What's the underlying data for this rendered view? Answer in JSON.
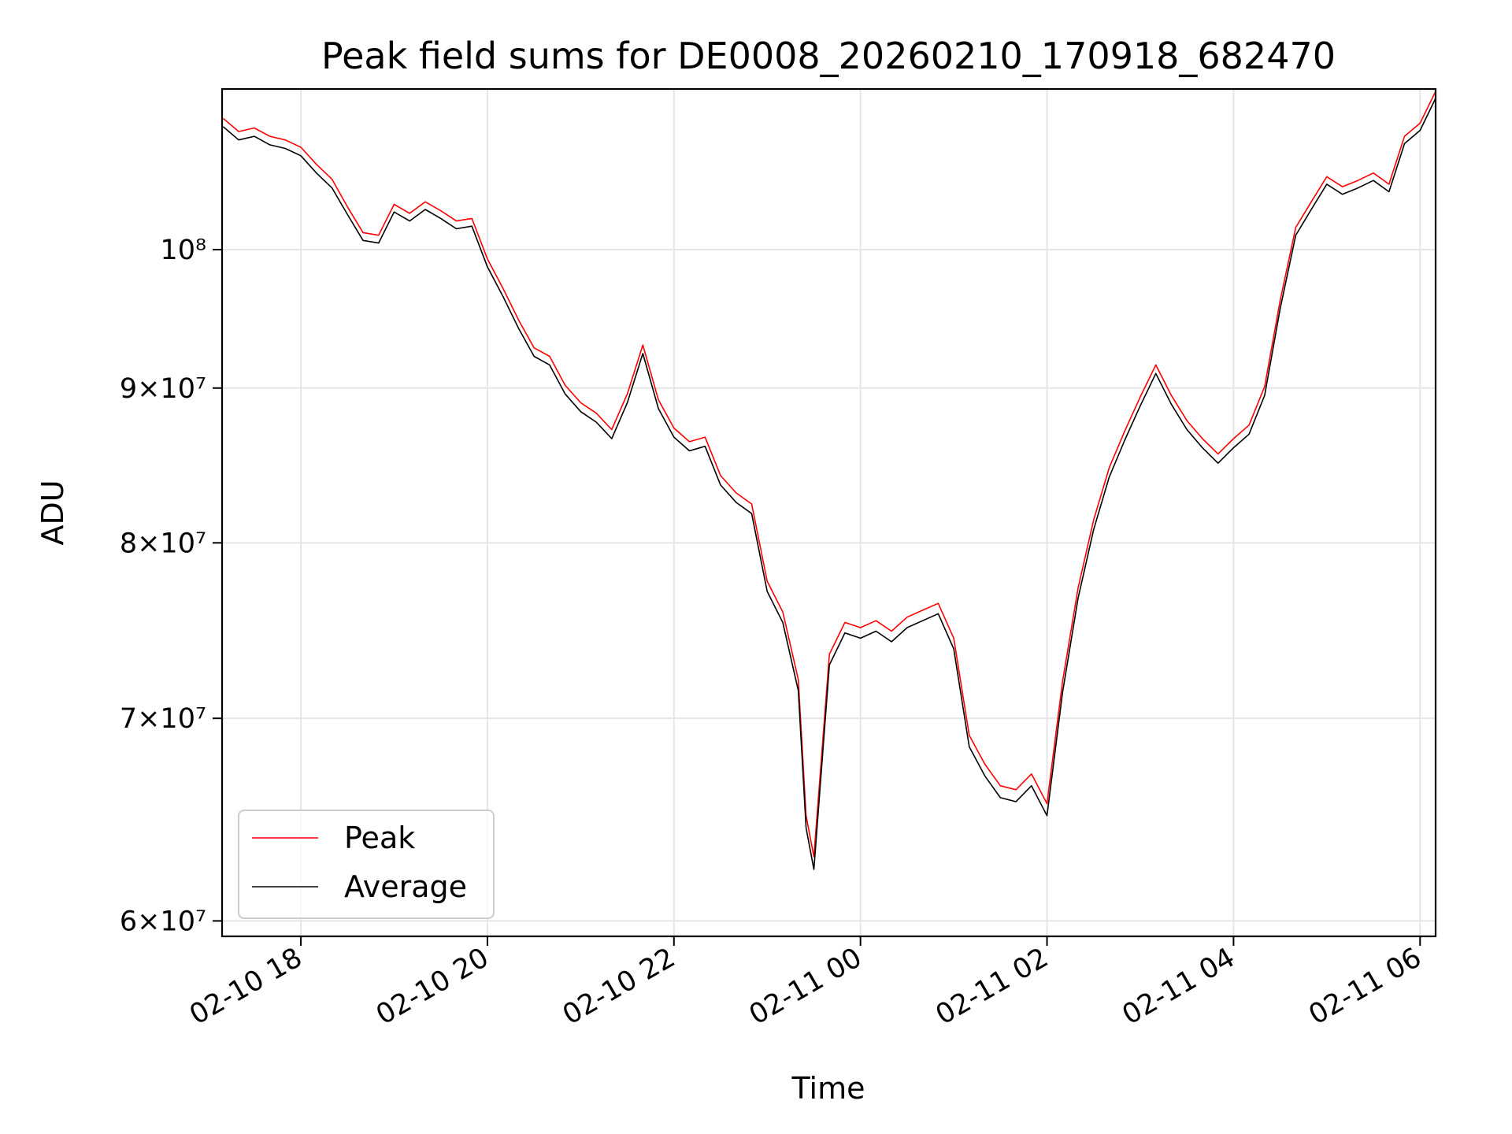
{
  "chart_data": {
    "type": "line",
    "title": "Peak field sums for DE0008_20260210_170918_682470",
    "xlabel": "Time",
    "ylabel": "ADU",
    "y_scale": "log",
    "ylim": [
      59300000,
      113000000
    ],
    "xlim": [
      "2026-02-10 17:09:18",
      "2026-02-11 06:10:00"
    ],
    "x_ticks": [
      "02-10 18",
      "02-10 20",
      "02-10 22",
      "02-11 00",
      "02-11 02",
      "02-11 04",
      "02-11 06"
    ],
    "y_ticks": [
      {
        "value": 60000000,
        "label": "6×10⁷"
      },
      {
        "value": 70000000,
        "label": "7×10⁷"
      },
      {
        "value": 80000000,
        "label": "8×10⁷"
      },
      {
        "value": 90000000,
        "label": "9×10⁷"
      },
      {
        "value": 100000000,
        "label": "10⁸"
      }
    ],
    "grid": true,
    "legend": "lower-left",
    "series": [
      {
        "name": "Peak",
        "color": "#ff0000",
        "points": [
          [
            "2026-02-10 17:10",
            110500000
          ],
          [
            "2026-02-10 17:20",
            109400000
          ],
          [
            "2026-02-10 17:30",
            109700000
          ],
          [
            "2026-02-10 17:40",
            109000000
          ],
          [
            "2026-02-10 17:50",
            108700000
          ],
          [
            "2026-02-10 18:00",
            108100000
          ],
          [
            "2026-02-10 18:10",
            106700000
          ],
          [
            "2026-02-10 18:20",
            105500000
          ],
          [
            "2026-02-10 18:30",
            103300000
          ],
          [
            "2026-02-10 18:40",
            101300000
          ],
          [
            "2026-02-10 18:50",
            101100000
          ],
          [
            "2026-02-10 19:00",
            103500000
          ],
          [
            "2026-02-10 19:10",
            102800000
          ],
          [
            "2026-02-10 19:20",
            103700000
          ],
          [
            "2026-02-10 19:30",
            103000000
          ],
          [
            "2026-02-10 19:40",
            102200000
          ],
          [
            "2026-02-10 19:50",
            102400000
          ],
          [
            "2026-02-10 20:00",
            99300000
          ],
          [
            "2026-02-10 20:10",
            97100000
          ],
          [
            "2026-02-10 20:20",
            94800000
          ],
          [
            "2026-02-10 20:30",
            92800000
          ],
          [
            "2026-02-10 20:40",
            92200000
          ],
          [
            "2026-02-10 20:50",
            90200000
          ],
          [
            "2026-02-10 21:00",
            89000000
          ],
          [
            "2026-02-10 21:10",
            88300000
          ],
          [
            "2026-02-10 21:20",
            87200000
          ],
          [
            "2026-02-10 21:30",
            89600000
          ],
          [
            "2026-02-10 21:40",
            93000000
          ],
          [
            "2026-02-10 21:50",
            89200000
          ],
          [
            "2026-02-10 22:00",
            87300000
          ],
          [
            "2026-02-10 22:10",
            86400000
          ],
          [
            "2026-02-10 22:20",
            86700000
          ],
          [
            "2026-02-10 22:30",
            84200000
          ],
          [
            "2026-02-10 22:40",
            83100000
          ],
          [
            "2026-02-10 22:50",
            82400000
          ],
          [
            "2026-02-10 23:00",
            77700000
          ],
          [
            "2026-02-10 23:10",
            75900000
          ],
          [
            "2026-02-10 23:20",
            72100000
          ],
          [
            "2026-02-10 23:25",
            65000000
          ],
          [
            "2026-02-10 23:30",
            63000000
          ],
          [
            "2026-02-10 23:40",
            73500000
          ],
          [
            "2026-02-10 23:50",
            75300000
          ],
          [
            "2026-02-11 00:00",
            75000000
          ],
          [
            "2026-02-11 00:10",
            75400000
          ],
          [
            "2026-02-11 00:20",
            74800000
          ],
          [
            "2026-02-11 00:30",
            75600000
          ],
          [
            "2026-02-11 00:40",
            76000000
          ],
          [
            "2026-02-11 00:50",
            76400000
          ],
          [
            "2026-02-11 01:00",
            74400000
          ],
          [
            "2026-02-11 01:10",
            69100000
          ],
          [
            "2026-02-11 01:20",
            67600000
          ],
          [
            "2026-02-11 01:30",
            66500000
          ],
          [
            "2026-02-11 01:40",
            66300000
          ],
          [
            "2026-02-11 01:50",
            67100000
          ],
          [
            "2026-02-11 02:00",
            65600000
          ],
          [
            "2026-02-11 02:10",
            72000000
          ],
          [
            "2026-02-11 02:20",
            77300000
          ],
          [
            "2026-02-11 02:30",
            81400000
          ],
          [
            "2026-02-11 02:40",
            84700000
          ],
          [
            "2026-02-11 02:50",
            87100000
          ],
          [
            "2026-02-11 03:00",
            89400000
          ],
          [
            "2026-02-11 03:10",
            91600000
          ],
          [
            "2026-02-11 03:20",
            89500000
          ],
          [
            "2026-02-11 03:30",
            87800000
          ],
          [
            "2026-02-11 03:40",
            86600000
          ],
          [
            "2026-02-11 03:50",
            85600000
          ],
          [
            "2026-02-11 04:00",
            86600000
          ],
          [
            "2026-02-11 04:10",
            87500000
          ],
          [
            "2026-02-11 04:20",
            90100000
          ],
          [
            "2026-02-11 04:30",
            96200000
          ],
          [
            "2026-02-11 04:40",
            101700000
          ],
          [
            "2026-02-11 04:50",
            103700000
          ],
          [
            "2026-02-11 05:00",
            105700000
          ],
          [
            "2026-02-11 05:10",
            104900000
          ],
          [
            "2026-02-11 05:20",
            105400000
          ],
          [
            "2026-02-11 05:30",
            106000000
          ],
          [
            "2026-02-11 05:40",
            105100000
          ],
          [
            "2026-02-11 05:50",
            109000000
          ],
          [
            "2026-02-11 06:00",
            110100000
          ],
          [
            "2026-02-11 06:10",
            112800000
          ]
        ]
      },
      {
        "name": "Average",
        "color": "#000000",
        "points": [
          [
            "2026-02-10 17:10",
            109800000
          ],
          [
            "2026-02-10 17:20",
            108700000
          ],
          [
            "2026-02-10 17:30",
            109000000
          ],
          [
            "2026-02-10 17:40",
            108300000
          ],
          [
            "2026-02-10 17:50",
            108000000
          ],
          [
            "2026-02-10 18:00",
            107400000
          ],
          [
            "2026-02-10 18:10",
            106000000
          ],
          [
            "2026-02-10 18:20",
            104800000
          ],
          [
            "2026-02-10 18:30",
            102700000
          ],
          [
            "2026-02-10 18:40",
            100700000
          ],
          [
            "2026-02-10 18:50",
            100500000
          ],
          [
            "2026-02-10 19:00",
            102900000
          ],
          [
            "2026-02-10 19:10",
            102200000
          ],
          [
            "2026-02-10 19:20",
            103100000
          ],
          [
            "2026-02-10 19:30",
            102400000
          ],
          [
            "2026-02-10 19:40",
            101600000
          ],
          [
            "2026-02-10 19:50",
            101800000
          ],
          [
            "2026-02-10 20:00",
            98700000
          ],
          [
            "2026-02-10 20:10",
            96500000
          ],
          [
            "2026-02-10 20:20",
            94200000
          ],
          [
            "2026-02-10 20:30",
            92200000
          ],
          [
            "2026-02-10 20:40",
            91600000
          ],
          [
            "2026-02-10 20:50",
            89600000
          ],
          [
            "2026-02-10 21:00",
            88400000
          ],
          [
            "2026-02-10 21:10",
            87700000
          ],
          [
            "2026-02-10 21:20",
            86600000
          ],
          [
            "2026-02-10 21:30",
            89000000
          ],
          [
            "2026-02-10 21:40",
            92400000
          ],
          [
            "2026-02-10 21:50",
            88600000
          ],
          [
            "2026-02-10 22:00",
            86700000
          ],
          [
            "2026-02-10 22:10",
            85800000
          ],
          [
            "2026-02-10 22:20",
            86100000
          ],
          [
            "2026-02-10 22:30",
            83600000
          ],
          [
            "2026-02-10 22:40",
            82500000
          ],
          [
            "2026-02-10 22:50",
            81800000
          ],
          [
            "2026-02-10 23:00",
            77100000
          ],
          [
            "2026-02-10 23:10",
            75300000
          ],
          [
            "2026-02-10 23:20",
            71500000
          ],
          [
            "2026-02-10 23:25",
            64400000
          ],
          [
            "2026-02-10 23:30",
            62400000
          ],
          [
            "2026-02-10 23:40",
            72900000
          ],
          [
            "2026-02-10 23:50",
            74700000
          ],
          [
            "2026-02-11 00:00",
            74400000
          ],
          [
            "2026-02-11 00:10",
            74800000
          ],
          [
            "2026-02-11 00:20",
            74200000
          ],
          [
            "2026-02-11 00:30",
            75000000
          ],
          [
            "2026-02-11 00:40",
            75400000
          ],
          [
            "2026-02-11 00:50",
            75800000
          ],
          [
            "2026-02-11 01:00",
            73800000
          ],
          [
            "2026-02-11 01:10",
            68500000
          ],
          [
            "2026-02-11 01:20",
            67000000
          ],
          [
            "2026-02-11 01:30",
            65900000
          ],
          [
            "2026-02-11 01:40",
            65700000
          ],
          [
            "2026-02-11 01:50",
            66500000
          ],
          [
            "2026-02-11 02:00",
            65000000
          ],
          [
            "2026-02-11 02:10",
            71400000
          ],
          [
            "2026-02-11 02:20",
            76700000
          ],
          [
            "2026-02-11 02:30",
            80800000
          ],
          [
            "2026-02-11 02:40",
            84100000
          ],
          [
            "2026-02-11 02:50",
            86500000
          ],
          [
            "2026-02-11 03:00",
            88800000
          ],
          [
            "2026-02-11 03:10",
            91000000
          ],
          [
            "2026-02-11 03:20",
            88900000
          ],
          [
            "2026-02-11 03:30",
            87200000
          ],
          [
            "2026-02-11 03:40",
            86000000
          ],
          [
            "2026-02-11 03:50",
            85000000
          ],
          [
            "2026-02-11 04:00",
            86000000
          ],
          [
            "2026-02-11 04:10",
            86900000
          ],
          [
            "2026-02-11 04:20",
            89500000
          ],
          [
            "2026-02-11 04:30",
            95600000
          ],
          [
            "2026-02-11 04:40",
            101100000
          ],
          [
            "2026-02-11 04:50",
            103100000
          ],
          [
            "2026-02-11 05:00",
            105100000
          ],
          [
            "2026-02-11 05:10",
            104300000
          ],
          [
            "2026-02-11 05:20",
            104800000
          ],
          [
            "2026-02-11 05:30",
            105400000
          ],
          [
            "2026-02-11 05:40",
            104500000
          ],
          [
            "2026-02-11 05:50",
            108400000
          ],
          [
            "2026-02-11 06:00",
            109500000
          ],
          [
            "2026-02-11 06:10",
            112200000
          ]
        ]
      }
    ]
  }
}
